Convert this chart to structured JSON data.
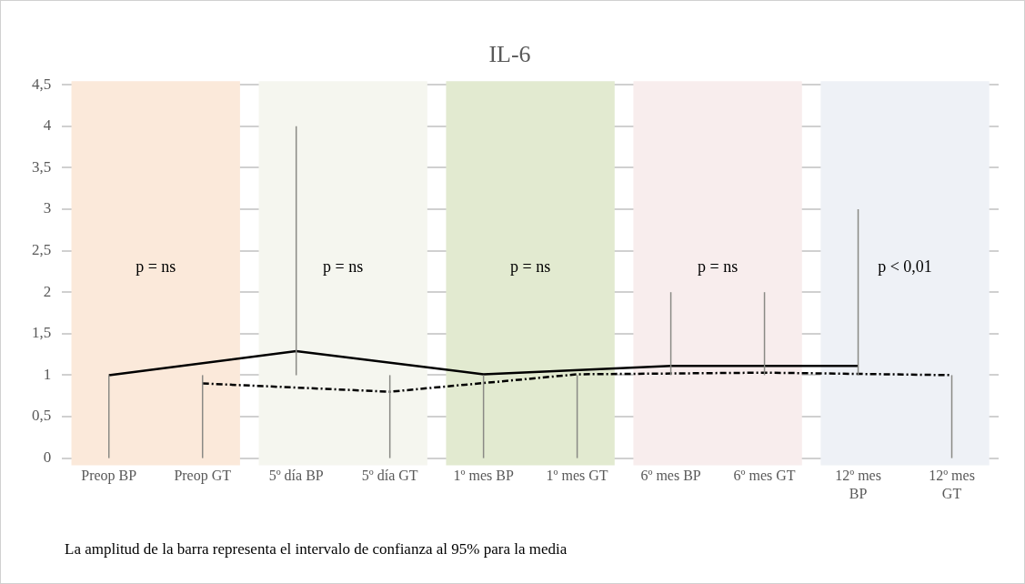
{
  "chart_data": {
    "type": "line",
    "title": "IL-6",
    "categories": [
      "Preop BP",
      "Preop GT",
      "5º día BP",
      "5º día GT",
      "1º mes BP",
      "1º mes GT",
      "6º mes BP",
      "6º mes GT",
      "12º mes BP",
      "12º mes GT"
    ],
    "series": [
      {
        "color": "#000000",
        "line_style": "solid",
        "x": [
          "Preop BP",
          "5º día BP",
          "1º mes BP",
          "6º mes BP",
          "12º mes BP"
        ],
        "values": [
          1.0,
          1.29,
          1.01,
          1.11,
          1.11
        ],
        "errors": [
          [
            0,
            1
          ],
          [
            1,
            4
          ],
          [
            0,
            1
          ],
          [
            1,
            2
          ],
          [
            1,
            3
          ]
        ]
      },
      {
        "color": "#000000",
        "line_style": "dashed",
        "x": [
          "Preop GT",
          "5º día GT",
          "1º mes GT",
          "6º mes GT",
          "12º mes GT"
        ],
        "values": [
          0.9,
          0.8,
          1.01,
          1.03,
          1.0
        ],
        "errors": [
          [
            0,
            1
          ],
          [
            0,
            1
          ],
          [
            0,
            1
          ],
          [
            1,
            2
          ],
          [
            0,
            1
          ]
        ]
      }
    ],
    "ylim": [
      0,
      4.5
    ],
    "yticks": [
      {
        "value": 0,
        "label": "0"
      },
      {
        "value": 0.5,
        "label": "0,5"
      },
      {
        "value": 1,
        "label": "1"
      },
      {
        "value": 1.5,
        "label": "1,5"
      },
      {
        "value": 2,
        "label": "2"
      },
      {
        "value": 2.5,
        "label": "2,5"
      },
      {
        "value": 3,
        "label": "3"
      },
      {
        "value": 3.5,
        "label": "3,5"
      },
      {
        "value": 4,
        "label": "4"
      },
      {
        "value": 4.5,
        "label": "4,5"
      }
    ],
    "grid": "y",
    "legend": false,
    "marker": "none",
    "bands": [
      {
        "axis": "x",
        "from": "Preop BP",
        "to": "Preop GT",
        "label": "p = ns",
        "color": "#fbe9da"
      },
      {
        "axis": "x",
        "from": "5º día BP",
        "to": "5º día GT",
        "label": "p = ns",
        "color": "#f5f6ef"
      },
      {
        "axis": "x",
        "from": "1º mes BP",
        "to": "1º mes GT",
        "label": "p = ns",
        "color": "#e2ead0"
      },
      {
        "axis": "x",
        "from": "6º mes BP",
        "to": "6º mes GT",
        "label": "p = ns",
        "color": "#f8eded"
      },
      {
        "axis": "x",
        "from": "12º mes BP",
        "to": "12º mes GT",
        "label": "p < 0,01",
        "color": "#eef1f6"
      }
    ],
    "annotations": [
      "La amplitud de la barra representa el intervalo de confianza al 95% para la media"
    ]
  }
}
